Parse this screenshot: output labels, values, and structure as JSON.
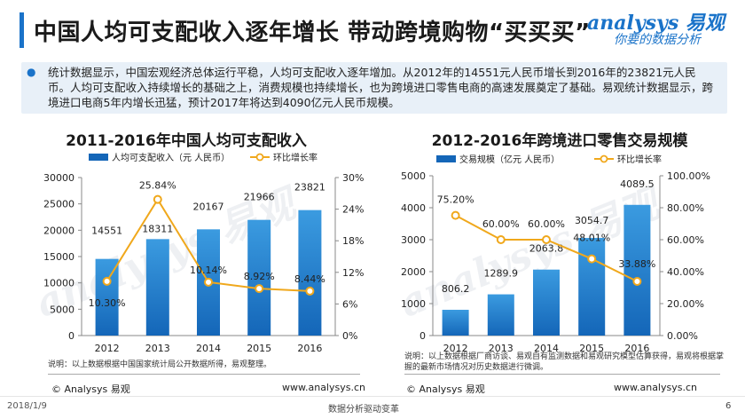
{
  "header": {
    "title": "中国人均可支配收入逐年增长 带动跨境购物“买买买”"
  },
  "logo": {
    "brand": "analysys 易观",
    "tagline": "你要的数据分析"
  },
  "summary": {
    "text": "统计数据显示，中国宏观经济总体运行平稳，人均可支配收入逐年增加。从2012年的14551元人民币增长到2016年的23821元人民币。人均可支配收入持续增长的基础之上，消费规模也持续增长，也为跨境进口零售电商的高速发展奠定了基础。易观统计数据显示，跨境进口电商5年内增长迅猛，预计2017年将达到4090亿元人民币规模。"
  },
  "chart_data": [
    {
      "type": "bar",
      "title": "2011-2016年中国人均可支配收入",
      "categories": [
        "2012",
        "2013",
        "2014",
        "2015",
        "2016"
      ],
      "series": [
        {
          "name": "人均可支配收入（元 人民币）",
          "type": "bar",
          "axis": "left",
          "values": [
            14551,
            18311,
            20167,
            21966,
            23821
          ],
          "labels": [
            "14551",
            "18311",
            "20167",
            "21966",
            "23821"
          ]
        },
        {
          "name": "环比增长率",
          "type": "line",
          "axis": "right",
          "values": [
            10.3,
            25.84,
            10.14,
            8.92,
            8.44
          ],
          "labels": [
            "10.30%",
            "25.84%",
            "10.14%",
            "8.92%",
            "8.44%"
          ]
        }
      ],
      "ylim_left": [
        0,
        30000
      ],
      "yticks_left": [
        "0",
        "5000",
        "10000",
        "15000",
        "20000",
        "25000",
        "30000"
      ],
      "ylim_right": [
        0,
        30
      ],
      "yticks_right": [
        "0%",
        "6%",
        "12%",
        "18%",
        "24%",
        "30%"
      ],
      "legend": "top",
      "note": "说明：以上数据根据中国国家统计局公开数据所得，易观整理。"
    },
    {
      "type": "bar",
      "title": "2012-2016年跨境进口零售交易规模",
      "categories": [
        "2012",
        "2013",
        "2014",
        "2015",
        "2016"
      ],
      "series": [
        {
          "name": "交易规模（亿元 人民币）",
          "type": "bar",
          "axis": "left",
          "values": [
            806.2,
            1289.9,
            2063.8,
            3054.7,
            4089.5
          ],
          "labels": [
            "806.2",
            "1289.9",
            "2063.8",
            "3054.7",
            "4089.5"
          ]
        },
        {
          "name": "环比增长率",
          "type": "line",
          "axis": "right",
          "values": [
            75.2,
            60.0,
            60.0,
            48.01,
            33.88
          ],
          "labels": [
            "75.20%",
            "60.00%",
            "60.00%",
            "48.01%",
            "33.88%"
          ]
        }
      ],
      "ylim_left": [
        0,
        5000
      ],
      "yticks_left": [
        "0",
        "1000",
        "2000",
        "3000",
        "4000",
        "5000"
      ],
      "ylim_right": [
        0,
        100
      ],
      "yticks_right": [
        "0.00%",
        "20.00%",
        "40.00%",
        "60.00%",
        "80.00%",
        "100.00%"
      ],
      "legend": "top",
      "note": "说明：以上数据根据厂商访谈、易观自有监测数据和易观研究模型估算获得，易观将根据掌握的最新市场情况对历史数据进行微调。"
    }
  ],
  "footer": {
    "copyright_left": "© Analysys 易观",
    "url_left": "www.analysys.cn",
    "copyright_right": "© Analysys 易观",
    "url_right": "www.analysys.cn",
    "date": "2018/1/9",
    "center": "数据分析驱动变革",
    "page": "6"
  },
  "colors": {
    "bar_top": "#3b9be0",
    "bar_bottom": "#1466b8",
    "line": "#f0a81c",
    "accent": "#1a73c9"
  }
}
